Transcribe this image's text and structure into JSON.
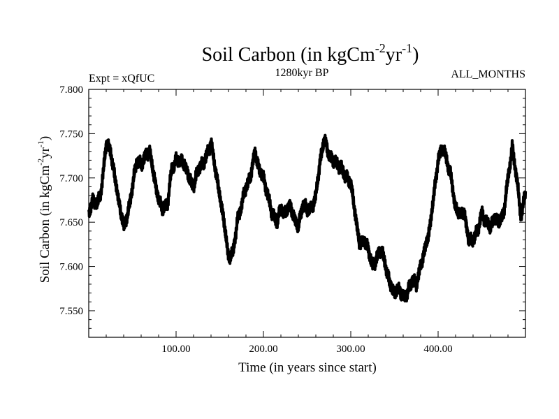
{
  "chart_data": {
    "type": "line",
    "title_main": "Soil Carbon (in kgCm",
    "title_sup1": "-2",
    "title_mid": "yr",
    "title_sup2": "-1",
    "title_end": ")",
    "left_label": "Expt = xQfUC",
    "center_label": "1280kyr BP",
    "right_label": "ALL_MONTHS",
    "xlabel": "Time (in years since start)",
    "ylabel_main": "Soil Carbon (in kgCm",
    "ylabel_sup1": "-2",
    "ylabel_mid": "yr",
    "ylabel_sup2": "-1",
    "ylabel_end": ")",
    "xlim": [
      0,
      500
    ],
    "ylim": [
      7.52,
      7.8
    ],
    "x_ticks": [
      100,
      200,
      300,
      400
    ],
    "x_tick_labels": [
      "100.00",
      "200.00",
      "300.00",
      "400.00"
    ],
    "y_ticks": [
      7.55,
      7.6,
      7.65,
      7.7,
      7.75,
      7.8
    ],
    "y_tick_labels": [
      "7.550",
      "7.600",
      "7.650",
      "7.700",
      "7.750",
      "7.800"
    ],
    "line_color": "#000000",
    "series": [
      {
        "name": "Soil Carbon",
        "x": [
          0,
          5,
          10,
          15,
          20,
          25,
          30,
          35,
          40,
          45,
          50,
          55,
          60,
          65,
          70,
          75,
          80,
          85,
          90,
          95,
          100,
          105,
          110,
          115,
          120,
          125,
          130,
          135,
          140,
          145,
          150,
          155,
          160,
          165,
          170,
          175,
          180,
          185,
          190,
          195,
          200,
          205,
          210,
          215,
          220,
          225,
          230,
          235,
          240,
          245,
          250,
          255,
          260,
          265,
          270,
          275,
          280,
          285,
          290,
          295,
          300,
          305,
          310,
          315,
          320,
          325,
          330,
          335,
          340,
          345,
          350,
          355,
          360,
          365,
          370,
          375,
          380,
          385,
          390,
          395,
          400,
          405,
          410,
          415,
          420,
          425,
          430,
          435,
          440,
          445,
          450,
          455,
          460,
          465,
          470,
          475,
          480,
          485,
          490,
          495,
          500
        ],
        "y": [
          7.66,
          7.675,
          7.67,
          7.69,
          7.74,
          7.73,
          7.7,
          7.67,
          7.645,
          7.66,
          7.69,
          7.72,
          7.715,
          7.725,
          7.73,
          7.7,
          7.675,
          7.665,
          7.67,
          7.71,
          7.72,
          7.72,
          7.715,
          7.7,
          7.69,
          7.71,
          7.715,
          7.725,
          7.74,
          7.71,
          7.68,
          7.65,
          7.61,
          7.615,
          7.65,
          7.67,
          7.69,
          7.7,
          7.73,
          7.71,
          7.7,
          7.68,
          7.66,
          7.65,
          7.665,
          7.66,
          7.67,
          7.655,
          7.645,
          7.67,
          7.665,
          7.665,
          7.68,
          7.72,
          7.745,
          7.725,
          7.72,
          7.715,
          7.71,
          7.7,
          7.695,
          7.66,
          7.625,
          7.63,
          7.62,
          7.6,
          7.61,
          7.62,
          7.6,
          7.58,
          7.57,
          7.575,
          7.565,
          7.57,
          7.585,
          7.58,
          7.6,
          7.62,
          7.64,
          7.68,
          7.72,
          7.735,
          7.72,
          7.7,
          7.665,
          7.66,
          7.66,
          7.63,
          7.63,
          7.64,
          7.66,
          7.65,
          7.645,
          7.655,
          7.65,
          7.66,
          7.7,
          7.735,
          7.7,
          7.655,
          7.685
        ]
      }
    ]
  }
}
